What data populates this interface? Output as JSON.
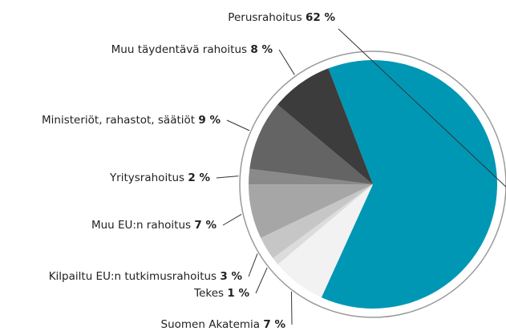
{
  "chart_data": {
    "type": "pie",
    "categories": [
      "Perusrahoitus",
      "Suomen Akatemia",
      "Tekes",
      "Kilpailtu EU:n tutkimusrahoitus",
      "Muu EU:n rahoitus",
      "Yritysrahoitus",
      "Ministeriöt, rahastot, säätiöt",
      "Muu täydentävä rahoitus"
    ],
    "values": [
      62,
      7,
      1,
      3,
      7,
      2,
      9,
      8
    ],
    "value_labels": [
      "62 %",
      "7 %",
      "1 %",
      "3 %",
      "7 %",
      "2 %",
      "9 %",
      "8 %"
    ],
    "colors": [
      "#0097b4",
      "#f2f2f2",
      "#dcdcdc",
      "#c6c6c6",
      "#a6a6a6",
      "#8a8a8a",
      "#646464",
      "#3c3c3c"
    ]
  }
}
